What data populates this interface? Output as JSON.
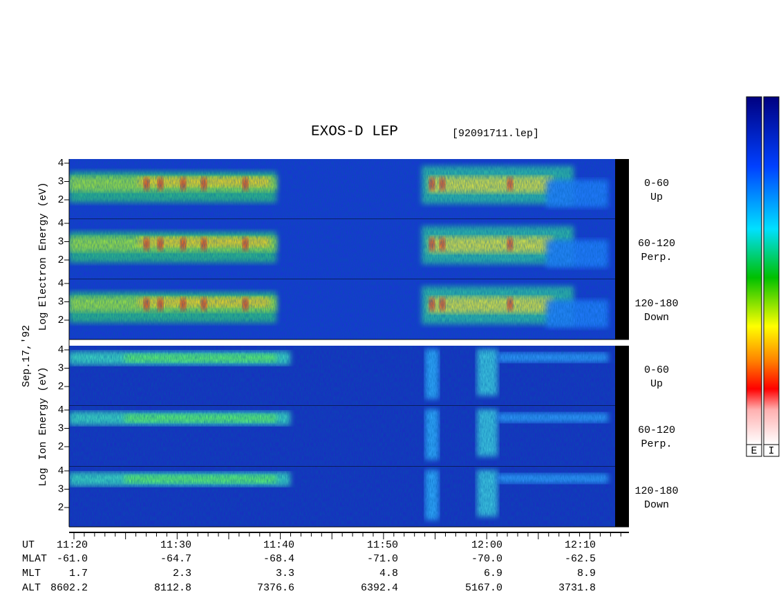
{
  "header": {
    "title": "EXOS-D LEP",
    "file": "[92091711.lep]"
  },
  "date": "Sep.17,'92",
  "electron_axis_label": [
    "Log",
    "Electron",
    "Energy (eV)"
  ],
  "ion_axis_label": [
    "Log",
    "Ion",
    "Energy (eV)"
  ],
  "panels": [
    {
      "angle": "0-60",
      "direction": "Up",
      "ticks": [
        "4",
        "3",
        "2"
      ]
    },
    {
      "angle": "60-120",
      "direction": "Perp.",
      "ticks": [
        "4",
        "3",
        "2"
      ]
    },
    {
      "angle": "120-180",
      "direction": "Down",
      "ticks": [
        "4",
        "3",
        "2"
      ]
    },
    {
      "angle": "0-60",
      "direction": "Up",
      "ticks": [
        "4",
        "3",
        "2"
      ]
    },
    {
      "angle": "60-120",
      "direction": "Perp.",
      "ticks": [
        "4",
        "3",
        "2"
      ]
    },
    {
      "angle": "120-180",
      "direction": "Down",
      "ticks": [
        "4",
        "3",
        "2"
      ]
    }
  ],
  "time_axis": {
    "rows": [
      {
        "label": "UT",
        "values": [
          "11:20",
          "11:30",
          "11:40",
          "11:50",
          "12:00",
          "12:10"
        ]
      },
      {
        "label": "MLAT",
        "values": [
          "-61.0",
          "-64.7",
          "-68.4",
          "-71.0",
          "-70.0",
          "-62.5"
        ]
      },
      {
        "label": "MLT",
        "values": [
          "1.7",
          "2.3",
          "3.3",
          "4.8",
          "6.9",
          "8.9"
        ]
      },
      {
        "label": "ALT",
        "values": [
          "8602.2",
          "8112.8",
          "7376.6",
          "6392.4",
          "5167.0",
          "3731.8"
        ]
      }
    ]
  },
  "colorbar_labels": [
    "E",
    "I"
  ]
}
